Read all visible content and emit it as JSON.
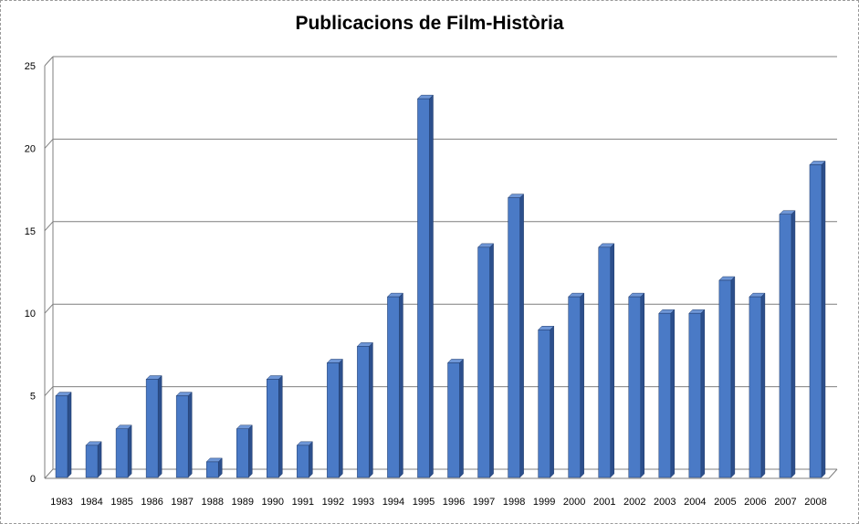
{
  "chart_data": {
    "type": "bar",
    "title": "Publicacions de Film-Història",
    "categories": [
      "1983",
      "1984",
      "1985",
      "1986",
      "1987",
      "1988",
      "1989",
      "1990",
      "1991",
      "1992",
      "1993",
      "1994",
      "1995",
      "1996",
      "1997",
      "1998",
      "1999",
      "2000",
      "2001",
      "2002",
      "2003",
      "2004",
      "2005",
      "2006",
      "2007",
      "2008"
    ],
    "values": [
      5,
      2,
      3,
      6,
      5,
      1,
      3,
      6,
      2,
      7,
      8,
      11,
      23,
      7,
      14,
      17,
      9,
      11,
      14,
      11,
      10,
      10,
      12,
      11,
      16,
      19
    ],
    "ylim": [
      0,
      25
    ],
    "yticks": [
      0,
      5,
      10,
      15,
      20,
      25
    ],
    "grid": true,
    "legend": "none",
    "bar_color": "#4a7ac6",
    "xlabel": "",
    "ylabel": ""
  }
}
